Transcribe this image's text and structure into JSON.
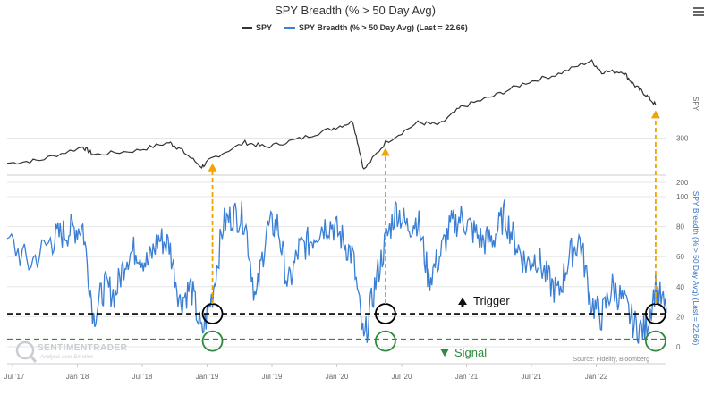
{
  "chart_data": {
    "type": "line",
    "title": "SPY Breadth (% > 50 Day Avg)",
    "legend": [
      "SPY",
      "SPY Breadth (% > 50 Day Avg) (Last = 22.66)"
    ],
    "legend_placement": "top-center",
    "x_tick_labels": [
      "Jul '17",
      "Jan '18",
      "Jul '18",
      "Jan '19",
      "Jul '19",
      "Jan '20",
      "Jul '20",
      "Jan '21",
      "Jul '21",
      "Jan '22"
    ],
    "top_panel": {
      "ylabel": "SPY",
      "yticks": [
        200,
        300
      ],
      "series": {
        "name": "SPY",
        "color": "#333333",
        "x": [
          "2017-06",
          "2017-09",
          "2018-01",
          "2018-02",
          "2018-06",
          "2018-09",
          "2018-10",
          "2018-12",
          "2019-01",
          "2019-04",
          "2019-06",
          "2019-09",
          "2019-12",
          "2020-02",
          "2020-03",
          "2020-05",
          "2020-08",
          "2020-10",
          "2020-12",
          "2021-03",
          "2021-06",
          "2021-09",
          "2021-12",
          "2022-01",
          "2022-03",
          "2022-04",
          "2022-05",
          "2022-06"
        ],
        "values": [
          243,
          250,
          280,
          262,
          272,
          290,
          275,
          235,
          255,
          290,
          280,
          298,
          321,
          337,
          228,
          290,
          335,
          330,
          370,
          395,
          425,
          445,
          475,
          450,
          450,
          420,
          400,
          375
        ]
      }
    },
    "bottom_panel": {
      "ylabel": "SPY Breadth (% > 50 Day Avg) (Last = 22.66)",
      "yticks": [
        0,
        20,
        40,
        60,
        80,
        100
      ],
      "series": {
        "name": "SPY Breadth (% > 50 Day Avg) (Last = 22.66)",
        "color": "#3a7fd5",
        "x": [
          "2017-06",
          "2017-08",
          "2017-10",
          "2017-11",
          "2017-12",
          "2018-01",
          "2018-02",
          "2018-03",
          "2018-04",
          "2018-05",
          "2018-06",
          "2018-07",
          "2018-08",
          "2018-09",
          "2018-10",
          "2018-11",
          "2018-12",
          "2019-01",
          "2019-02",
          "2019-03",
          "2019-04",
          "2019-05",
          "2019-06",
          "2019-07",
          "2019-08",
          "2019-09",
          "2019-10",
          "2019-11",
          "2019-12",
          "2020-01",
          "2020-02",
          "2020-03",
          "2020-04",
          "2020-05",
          "2020-06",
          "2020-07",
          "2020-08",
          "2020-09",
          "2020-10",
          "2020-11",
          "2020-12",
          "2021-01",
          "2021-02",
          "2021-03",
          "2021-04",
          "2021-05",
          "2021-06",
          "2021-07",
          "2021-08",
          "2021-09",
          "2021-10",
          "2021-11",
          "2021-12",
          "2022-01",
          "2022-02",
          "2022-03",
          "2022-04",
          "2022-05",
          "2022-06",
          "2022-07"
        ],
        "values": [
          72,
          55,
          70,
          75,
          78,
          80,
          20,
          40,
          35,
          60,
          65,
          55,
          72,
          68,
          30,
          40,
          8,
          35,
          82,
          88,
          85,
          30,
          78,
          82,
          40,
          65,
          70,
          80,
          82,
          72,
          60,
          2,
          40,
          70,
          92,
          80,
          85,
          45,
          60,
          80,
          86,
          78,
          70,
          72,
          88,
          70,
          55,
          60,
          45,
          35,
          60,
          72,
          30,
          20,
          40,
          30,
          15,
          10,
          40,
          22.66
        ]
      }
    },
    "annotations": {
      "trigger_label": "Trigger",
      "trigger_level": 22,
      "signal_label": "Signal",
      "signal_level": 5,
      "trigger_color": "#000000",
      "signal_color": "#2e8b3e",
      "arrow_color": "#f0a500",
      "marker_dates": [
        "2019-01",
        "2020-05",
        "2022-06"
      ]
    },
    "source": "Source: Fidelity, Bloomberg",
    "watermark": {
      "brand": "SENTIMENTRADER",
      "tagline": "Analysis over Emotion"
    }
  }
}
